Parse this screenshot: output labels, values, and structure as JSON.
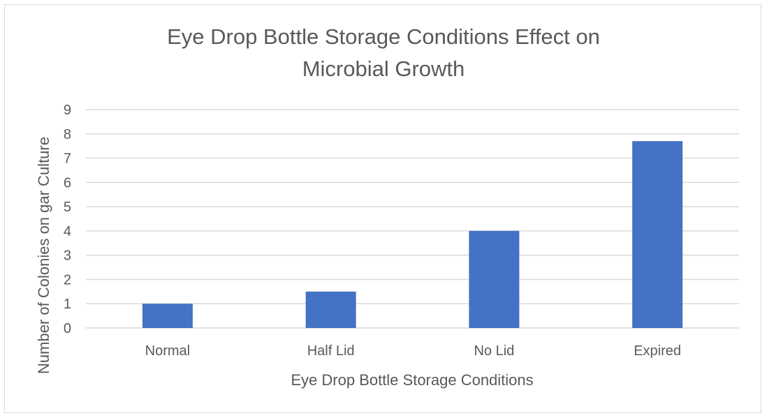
{
  "chart_data": {
    "type": "bar",
    "title_lines": [
      "Eye Drop Bottle Storage Conditions Effect on",
      "Microbial Growth"
    ],
    "categories": [
      "Normal",
      "Half Lid",
      "No Lid",
      "Expired"
    ],
    "values": [
      1,
      1.5,
      4,
      7.7
    ],
    "xlabel": "Eye Drop Bottle Storage Conditions",
    "ylabel": "Number of Colonies on gar Culture",
    "ylim": [
      0,
      9
    ],
    "yticks": [
      0,
      1,
      2,
      3,
      4,
      5,
      6,
      7,
      8,
      9
    ],
    "grid": true,
    "legend": "none",
    "bar_color": "#4472c4",
    "grid_color": "#d9d9d9"
  }
}
